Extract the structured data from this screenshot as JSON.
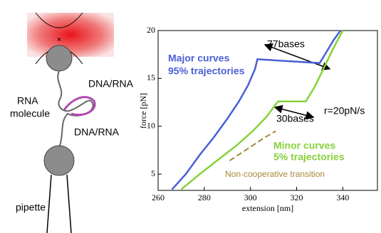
{
  "schematic": {
    "labels": [
      "DNA/RNA",
      "RNA",
      "molecule",
      "DNA/RNA",
      "pipette"
    ]
  },
  "chart_data": {
    "type": "line",
    "x_label": "extension [nm]",
    "y_label": "force [pN]",
    "xlim": [
      260,
      355
    ],
    "ylim": [
      3.3,
      20
    ],
    "xticks": [
      260,
      280,
      300,
      320,
      340
    ],
    "yticks": [
      5,
      10,
      15,
      20
    ],
    "series": [
      {
        "name": "Major curves",
        "color": "#4a5fd6",
        "x": [
          266,
          272,
          278,
          284,
          290,
          295,
          299,
          302,
          303,
          330,
          333,
          336,
          339
        ],
        "values": [
          3.4,
          5,
          7,
          8.8,
          10.8,
          12.6,
          14.3,
          16,
          17,
          16.6,
          17.8,
          19,
          20
        ]
      },
      {
        "name": "Minor curves",
        "color": "#86d23a",
        "x": [
          270,
          278,
          286,
          294,
          301,
          307,
          311,
          312,
          324,
          328,
          332,
          336,
          340
        ],
        "values": [
          3.4,
          5,
          6.5,
          8,
          9.5,
          11,
          12.3,
          12.6,
          12.6,
          14.2,
          16.2,
          18.2,
          20
        ]
      },
      {
        "name": "Non-cooperative transition",
        "color": "#a8883a",
        "dashed": true,
        "x": [
          291,
          296,
          301,
          306,
          311
        ],
        "values": [
          6.4,
          7.2,
          8,
          8.8,
          9.5
        ]
      }
    ],
    "annotations": [
      "95% trajectories",
      "5% trajectories",
      "77bases",
      "30bases",
      "r=20pN/s"
    ]
  }
}
